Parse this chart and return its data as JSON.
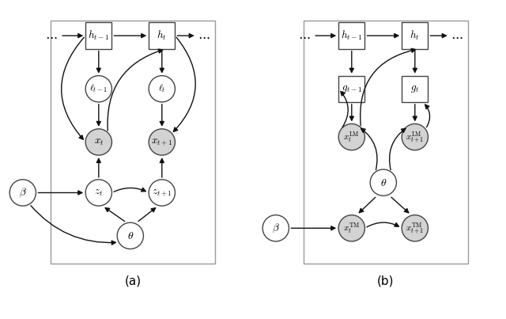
{
  "fig_width": 6.4,
  "fig_height": 4.03,
  "dpi": 100,
  "background": "#ffffff",
  "node_color_white": "#ffffff",
  "node_color_gray": "#d3d3d3",
  "node_edge_color": "#444444",
  "arrow_color": "#111111",
  "box_color": "#ffffff",
  "box_edge": "#444444",
  "label_a": "(a)",
  "label_b": "(b)"
}
